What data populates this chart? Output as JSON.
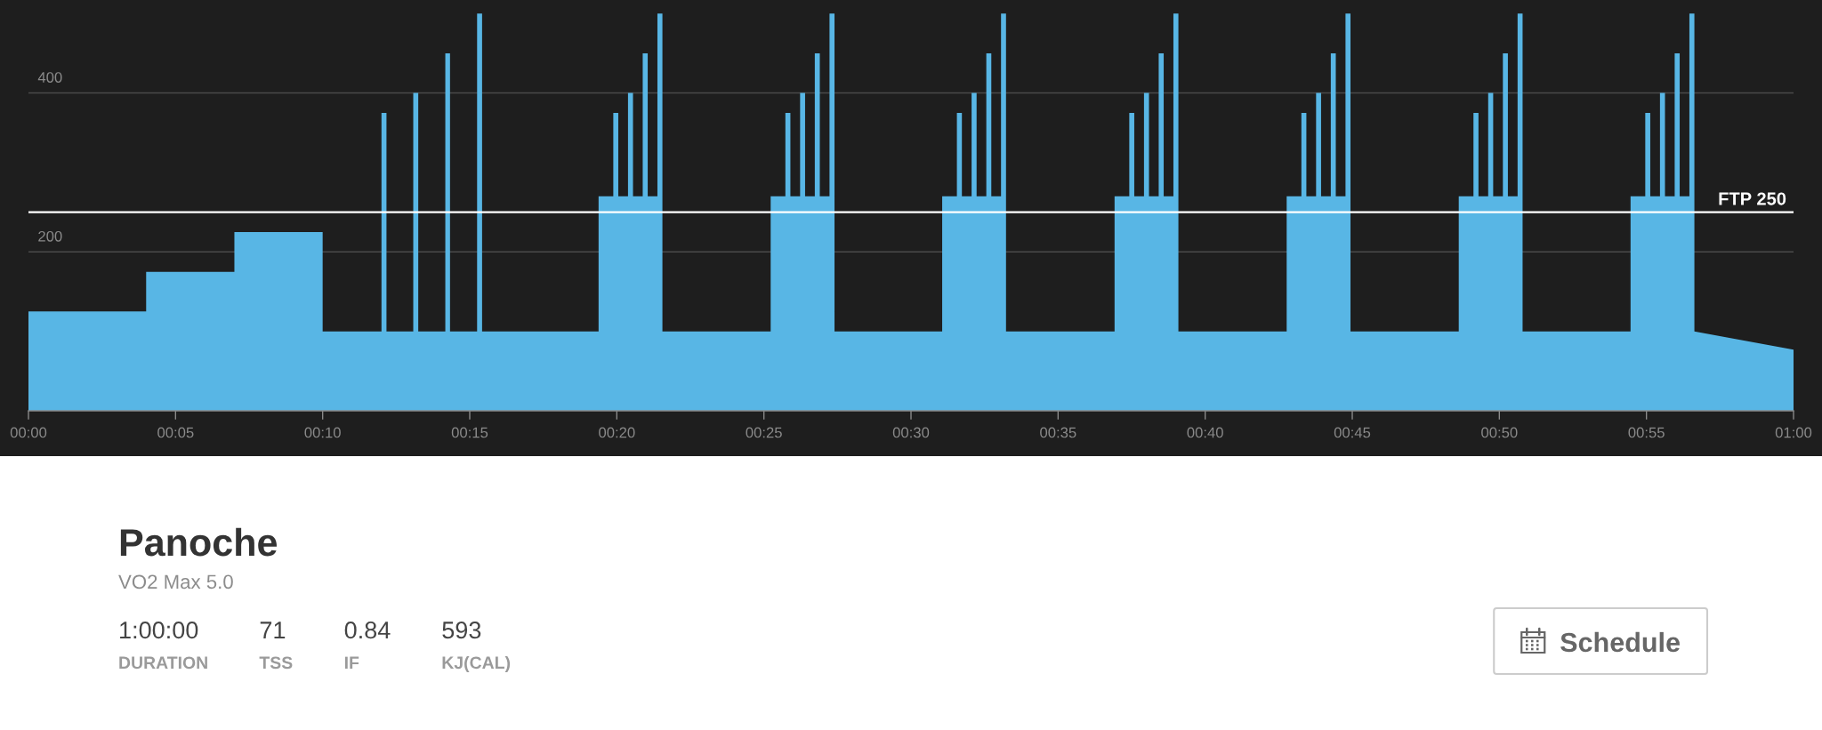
{
  "chart_data": [
    {
      "type": "area",
      "series": [
        {
          "color": "#58b6e5",
          "x": [
            0,
            4,
            4,
            7,
            7,
            10,
            10,
            12,
            12,
            12.17,
            12.17,
            13.08,
            13.08,
            13.25,
            13.25,
            14.17,
            14.17,
            14.33,
            14.33,
            15.25,
            15.25,
            15.42,
            15.42,
            19.38,
            19.38,
            19.88,
            19.88,
            20.05,
            20.05,
            20.38,
            20.38,
            20.55,
            20.55,
            20.88,
            20.88,
            21.05,
            21.05,
            21.38,
            21.38,
            21.55,
            21.55,
            25.23,
            25.23,
            25.73,
            25.73,
            25.9,
            25.9,
            26.23,
            26.23,
            26.4,
            26.4,
            26.73,
            26.73,
            26.9,
            26.9,
            27.23,
            27.23,
            27.4,
            27.4,
            31.06,
            31.06,
            31.56,
            31.56,
            31.73,
            31.73,
            32.06,
            32.06,
            32.23,
            32.23,
            32.56,
            32.56,
            32.73,
            32.73,
            33.06,
            33.06,
            33.23,
            33.23,
            36.92,
            36.92,
            37.42,
            37.42,
            37.59,
            37.59,
            37.92,
            37.92,
            38.09,
            38.09,
            38.42,
            38.42,
            38.59,
            38.59,
            38.92,
            38.92,
            39.09,
            39.09,
            42.77,
            42.77,
            43.27,
            43.27,
            43.44,
            43.44,
            43.77,
            43.77,
            43.94,
            43.94,
            44.27,
            44.27,
            44.44,
            44.44,
            44.77,
            44.77,
            44.94,
            44.94,
            48.62,
            48.62,
            49.12,
            49.12,
            49.29,
            49.29,
            49.62,
            49.62,
            49.79,
            49.79,
            50.12,
            50.12,
            50.29,
            50.29,
            50.62,
            50.62,
            50.79,
            50.79,
            54.46,
            54.46,
            54.96,
            54.96,
            55.13,
            55.13,
            55.46,
            55.46,
            55.63,
            55.63,
            55.96,
            55.96,
            56.13,
            56.13,
            56.46,
            56.46,
            56.63,
            56.63,
            60
          ],
          "values": [
            125,
            125,
            175,
            175,
            225,
            225,
            100,
            100,
            375,
            375,
            100,
            100,
            400,
            400,
            100,
            100,
            450,
            450,
            100,
            100,
            500,
            500,
            100,
            100,
            270,
            270,
            375,
            375,
            270,
            270,
            400,
            400,
            270,
            270,
            450,
            450,
            270,
            270,
            500,
            500,
            100,
            100,
            270,
            270,
            375,
            375,
            270,
            270,
            400,
            400,
            270,
            270,
            450,
            450,
            270,
            270,
            500,
            500,
            100,
            100,
            270,
            270,
            375,
            375,
            270,
            270,
            400,
            400,
            270,
            270,
            450,
            450,
            270,
            270,
            500,
            500,
            100,
            100,
            270,
            270,
            375,
            375,
            270,
            270,
            400,
            400,
            270,
            270,
            450,
            450,
            270,
            270,
            500,
            500,
            100,
            100,
            270,
            270,
            375,
            375,
            270,
            270,
            400,
            400,
            270,
            270,
            450,
            450,
            270,
            270,
            500,
            500,
            100,
            100,
            270,
            270,
            375,
            375,
            270,
            270,
            400,
            400,
            270,
            270,
            450,
            450,
            270,
            270,
            500,
            500,
            100,
            100,
            270,
            270,
            375,
            375,
            270,
            270,
            400,
            400,
            270,
            270,
            450,
            450,
            270,
            270,
            500,
            500,
            100,
            77
          ]
        }
      ],
      "xlim": [
        0,
        60
      ],
      "xticks": [
        {
          "value": 0,
          "label": "00:00"
        },
        {
          "value": 5,
          "label": "00:05"
        },
        {
          "value": 10,
          "label": "00:10"
        },
        {
          "value": 15,
          "label": "00:15"
        },
        {
          "value": 20,
          "label": "00:20"
        },
        {
          "value": 25,
          "label": "00:25"
        },
        {
          "value": 30,
          "label": "00:30"
        },
        {
          "value": 35,
          "label": "00:35"
        },
        {
          "value": 40,
          "label": "00:40"
        },
        {
          "value": 45,
          "label": "00:45"
        },
        {
          "value": 50,
          "label": "00:50"
        },
        {
          "value": 55,
          "label": "00:55"
        },
        {
          "value": 60,
          "label": "01:00"
        }
      ],
      "ylim": [
        -57,
        517
      ],
      "yticks": [
        200,
        400
      ],
      "grid": "y",
      "ref_lines": [
        {
          "axis": "y",
          "value": 250,
          "label": "FTP 250",
          "color": "#ffffff"
        }
      ]
    },
    {
      "type": "other",
      "title": "Panoche",
      "subtitle": "VO2 Max 5.0",
      "annotations": [
        "1:00:00",
        "DURATION",
        "71",
        "TSS",
        "0.84",
        "IF",
        "593",
        "KJ(CAL)",
        "Schedule"
      ]
    }
  ]
}
